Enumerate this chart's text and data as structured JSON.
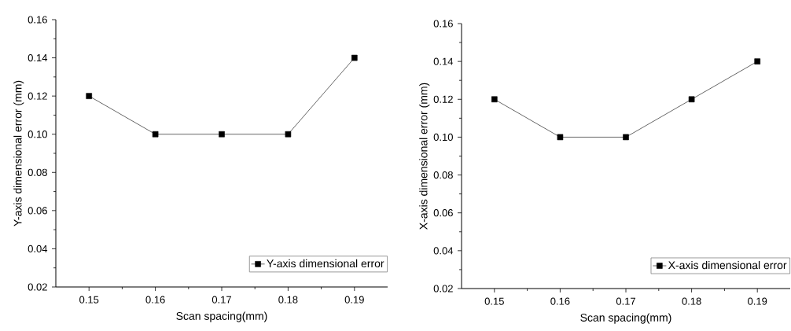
{
  "chart_data": [
    {
      "type": "line",
      "xlabel": "Scan spacing(mm)",
      "ylabel": "Y-axis dimensional error (mm)",
      "x": [
        0.15,
        0.16,
        0.17,
        0.18,
        0.19
      ],
      "series": [
        {
          "name": "Y-axis dimensional error",
          "color": "#000000",
          "values": [
            0.12,
            0.1,
            0.1,
            0.1,
            0.14
          ]
        }
      ],
      "xlim": [
        0.145,
        0.195
      ],
      "xticks": [
        0.15,
        0.16,
        0.17,
        0.18,
        0.19
      ],
      "ylim": [
        0.02,
        0.16
      ],
      "yticks": [
        0.02,
        0.04,
        0.06,
        0.08,
        {
          "value": 0.1,
          "label": "0.10"
        },
        0.12,
        0.14,
        0.16
      ],
      "marker": "square",
      "line_style": "solid",
      "legend": "bottom right",
      "grid": false
    },
    {
      "type": "line",
      "xlabel": "Scan spacing(mm)",
      "ylabel": "X-axis dimensional error (mm)",
      "x": [
        0.15,
        0.16,
        0.17,
        0.18,
        0.19
      ],
      "series": [
        {
          "name": "X-axis dimensional error",
          "color": "#000000",
          "values": [
            0.12,
            0.1,
            0.1,
            0.12,
            0.14
          ]
        }
      ],
      "xlim": [
        0.145,
        0.195
      ],
      "xticks": [
        0.15,
        0.16,
        0.17,
        0.18,
        0.19
      ],
      "ylim": [
        0.02,
        0.16
      ],
      "yticks": [
        0.02,
        0.04,
        0.06,
        0.08,
        {
          "value": 0.1,
          "label": "0.10"
        },
        0.12,
        0.14,
        0.16
      ],
      "marker": "square",
      "line_style": "solid",
      "legend": "bottom right",
      "grid": false
    }
  ]
}
